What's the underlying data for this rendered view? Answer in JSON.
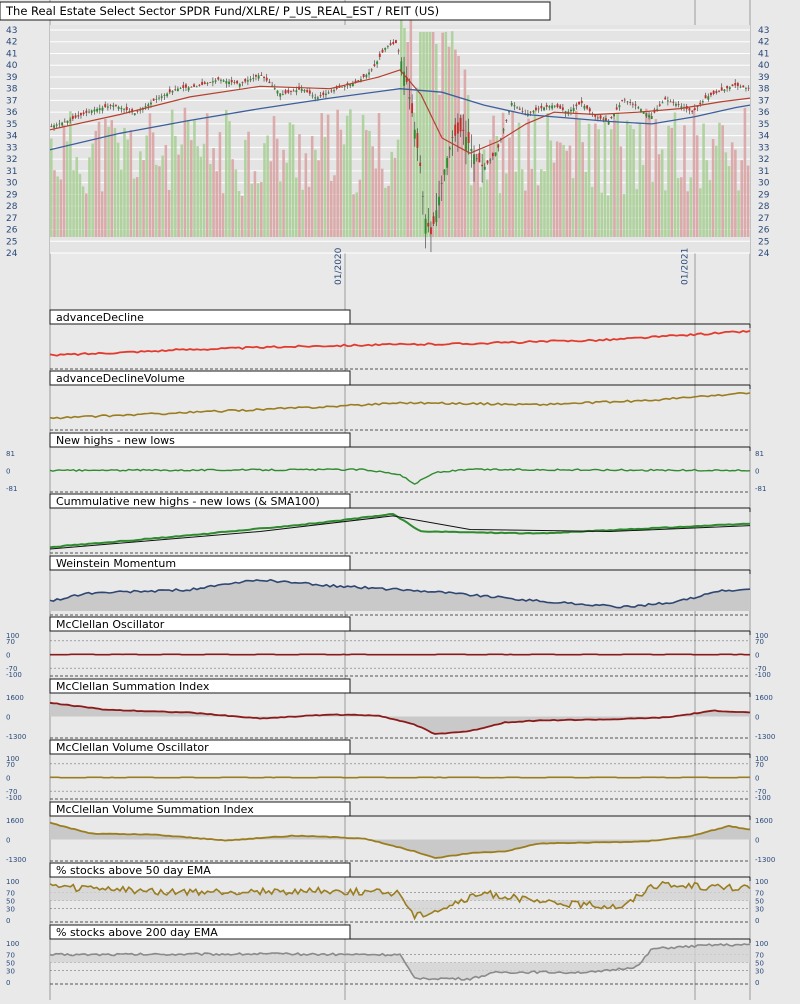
{
  "title": "The Real Estate Select Sector SPDR Fund/XLRE/ P_US_REAL_EST / REIT (US)",
  "colors": {
    "background": "#e9e9e9",
    "grid": "#ffffff",
    "frame": "#1a1a1a",
    "axis_text": "#2a4a7a",
    "up_candle": "#2e8b2e",
    "down_candle": "#c0302a",
    "volume_up": "#a7cf93",
    "volume_down": "#d9a0a0",
    "sma_red": "#b5402e",
    "sma_blue": "#3d5f9c",
    "ad_line": "#e23b2e",
    "olive": "#9a7d1f",
    "green": "#2e8b2e",
    "navy": "#2f4672",
    "maroon": "#8b1a1a",
    "gray_line": "#8a8a8a"
  },
  "chart_data": [
    {
      "type": "candlestick",
      "title": "The Real Estate Select Sector SPDR Fund/XLRE/ P_US_REAL_EST / REIT (US)",
      "y_ticks": [
        "43",
        "42",
        "41",
        "40",
        "39",
        "38",
        "37",
        "36",
        "35",
        "34",
        "33",
        "32",
        "31",
        "30",
        "29",
        "28",
        "27",
        "26",
        "25",
        "24"
      ],
      "ylim": [
        24,
        43
      ],
      "x_ticks": [
        "01/2020",
        "01/2021"
      ],
      "x_tick_positions": [
        0.42,
        0.915
      ],
      "series": [
        {
          "kind": "close",
          "points": [
            [
              0,
              34.8
            ],
            [
              0.03,
              35.4
            ],
            [
              0.06,
              36.2
            ],
            [
              0.09,
              36.6
            ],
            [
              0.12,
              35.9
            ],
            [
              0.15,
              37.1
            ],
            [
              0.18,
              38.0
            ],
            [
              0.21,
              38.2
            ],
            [
              0.24,
              38.8
            ],
            [
              0.27,
              38.4
            ],
            [
              0.3,
              39.2
            ],
            [
              0.33,
              37.5
            ],
            [
              0.36,
              38.0
            ],
            [
              0.38,
              37.2
            ],
            [
              0.41,
              38.0
            ],
            [
              0.44,
              38.6
            ],
            [
              0.46,
              39.6
            ],
            [
              0.48,
              41.6
            ],
            [
              0.495,
              41.9
            ],
            [
              0.51,
              38.5
            ],
            [
              0.52,
              35.0
            ],
            [
              0.53,
              31.0
            ],
            [
              0.535,
              27.2
            ],
            [
              0.545,
              25.5
            ],
            [
              0.555,
              28.5
            ],
            [
              0.565,
              31.5
            ],
            [
              0.575,
              33.8
            ],
            [
              0.59,
              34.5
            ],
            [
              0.605,
              32.5
            ],
            [
              0.62,
              31.2
            ],
            [
              0.64,
              32.8
            ],
            [
              0.66,
              36.8
            ],
            [
              0.68,
              35.8
            ],
            [
              0.7,
              36.3
            ],
            [
              0.72,
              36.6
            ],
            [
              0.74,
              36.0
            ],
            [
              0.76,
              36.8
            ],
            [
              0.78,
              35.6
            ],
            [
              0.8,
              35.2
            ],
            [
              0.82,
              37.1
            ],
            [
              0.84,
              36.5
            ],
            [
              0.86,
              35.6
            ],
            [
              0.88,
              37.1
            ],
            [
              0.9,
              36.6
            ],
            [
              0.92,
              36.0
            ],
            [
              0.94,
              37.3
            ],
            [
              0.96,
              37.8
            ],
            [
              0.98,
              38.3
            ],
            [
              1.0,
              38.0
            ]
          ]
        },
        {
          "kind": "sma_short",
          "points": [
            [
              0,
              34.5
            ],
            [
              0.1,
              35.8
            ],
            [
              0.2,
              37.3
            ],
            [
              0.3,
              38.2
            ],
            [
              0.4,
              38.0
            ],
            [
              0.47,
              39.0
            ],
            [
              0.5,
              39.6
            ],
            [
              0.53,
              37.5
            ],
            [
              0.56,
              33.8
            ],
            [
              0.6,
              32.5
            ],
            [
              0.64,
              33.5
            ],
            [
              0.68,
              35.0
            ],
            [
              0.72,
              36.0
            ],
            [
              0.78,
              35.8
            ],
            [
              0.84,
              36.0
            ],
            [
              0.9,
              36.3
            ],
            [
              0.96,
              36.9
            ],
            [
              1.0,
              37.2
            ]
          ]
        },
        {
          "kind": "sma_long",
          "points": [
            [
              0,
              32.8
            ],
            [
              0.1,
              34.2
            ],
            [
              0.2,
              35.3
            ],
            [
              0.3,
              36.3
            ],
            [
              0.4,
              37.2
            ],
            [
              0.5,
              38.0
            ],
            [
              0.56,
              37.7
            ],
            [
              0.62,
              36.6
            ],
            [
              0.68,
              35.8
            ],
            [
              0.74,
              35.5
            ],
            [
              0.8,
              35.2
            ],
            [
              0.86,
              35.0
            ],
            [
              0.92,
              35.6
            ],
            [
              0.98,
              36.4
            ],
            [
              1.0,
              36.6
            ]
          ]
        }
      ]
    },
    {
      "type": "line",
      "title": "advanceDecline",
      "points": [
        [
          0,
          0.3
        ],
        [
          0.2,
          0.45
        ],
        [
          0.4,
          0.55
        ],
        [
          0.6,
          0.6
        ],
        [
          0.8,
          0.7
        ],
        [
          1.0,
          0.92
        ]
      ]
    },
    {
      "type": "line",
      "title": "advanceDeclineVolume",
      "points": [
        [
          0,
          0.25
        ],
        [
          0.2,
          0.4
        ],
        [
          0.4,
          0.55
        ],
        [
          0.5,
          0.65
        ],
        [
          0.7,
          0.6
        ],
        [
          0.85,
          0.7
        ],
        [
          1.0,
          0.9
        ]
      ]
    },
    {
      "type": "line",
      "title": "New highs - new lows",
      "y_ticks": [
        "81",
        "0",
        "-81"
      ],
      "points": [
        [
          0,
          0.0
        ],
        [
          0.45,
          0.05
        ],
        [
          0.5,
          -0.2
        ],
        [
          0.52,
          -0.7
        ],
        [
          0.55,
          -0.1
        ],
        [
          0.6,
          0.05
        ],
        [
          1.0,
          0.0
        ]
      ]
    },
    {
      "type": "line",
      "title": "Cummulative new highs - new lows (& SMA100)",
      "points": [
        [
          0,
          0.1
        ],
        [
          0.2,
          0.4
        ],
        [
          0.4,
          0.75
        ],
        [
          0.49,
          0.95
        ],
        [
          0.53,
          0.5
        ],
        [
          0.7,
          0.45
        ],
        [
          1.0,
          0.7
        ]
      ]
    },
    {
      "type": "area",
      "title": "Weinstein Momentum",
      "points": [
        [
          0,
          0.3
        ],
        [
          0.05,
          0.5
        ],
        [
          0.2,
          0.6
        ],
        [
          0.3,
          0.85
        ],
        [
          0.4,
          0.7
        ],
        [
          0.55,
          0.55
        ],
        [
          0.7,
          0.3
        ],
        [
          0.82,
          0.15
        ],
        [
          0.9,
          0.3
        ],
        [
          0.95,
          0.55
        ],
        [
          1.0,
          0.6
        ]
      ]
    },
    {
      "type": "oscillator",
      "title": "McClellan Oscillator",
      "y_ticks": [
        "100",
        "70",
        "0",
        "-70",
        "-100"
      ],
      "ylim": [
        -100,
        100
      ]
    },
    {
      "type": "area",
      "title": "McClellan Summation Index",
      "y_ticks": [
        "1600",
        "0",
        "-1300"
      ],
      "ylim": [
        -1300,
        1600
      ],
      "points": [
        [
          0,
          0.7
        ],
        [
          0.08,
          0.35
        ],
        [
          0.2,
          0.2
        ],
        [
          0.3,
          -0.1
        ],
        [
          0.4,
          0.1
        ],
        [
          0.47,
          0.05
        ],
        [
          0.52,
          -0.4
        ],
        [
          0.55,
          -0.9
        ],
        [
          0.6,
          -0.75
        ],
        [
          0.65,
          -0.3
        ],
        [
          0.7,
          -0.2
        ],
        [
          0.8,
          -0.15
        ],
        [
          0.88,
          -0.05
        ],
        [
          0.95,
          0.3
        ],
        [
          1.0,
          0.2
        ]
      ]
    },
    {
      "type": "oscillator",
      "title": "McClellan Volume Oscillator",
      "y_ticks": [
        "100",
        "70",
        "0",
        "-70",
        "-100"
      ],
      "ylim": [
        -100,
        100
      ]
    },
    {
      "type": "area",
      "title": "McClellan Volume Summation Index",
      "y_ticks": [
        "1600",
        "0",
        "-1300"
      ],
      "ylim": [
        -1300,
        1600
      ],
      "points": [
        [
          0,
          0.85
        ],
        [
          0.06,
          0.3
        ],
        [
          0.15,
          0.25
        ],
        [
          0.25,
          -0.05
        ],
        [
          0.35,
          0.2
        ],
        [
          0.45,
          0.05
        ],
        [
          0.52,
          -0.6
        ],
        [
          0.55,
          -0.95
        ],
        [
          0.6,
          -0.7
        ],
        [
          0.65,
          -0.6
        ],
        [
          0.7,
          -0.2
        ],
        [
          0.78,
          -0.15
        ],
        [
          0.85,
          -0.1
        ],
        [
          0.92,
          0.2
        ],
        [
          0.97,
          0.7
        ],
        [
          1.0,
          0.5
        ]
      ]
    },
    {
      "type": "percent",
      "title": "% stocks above 50 day EMA",
      "y_ticks": [
        "100",
        "70",
        "50",
        "30",
        "0"
      ],
      "ylim": [
        0,
        100
      ]
    },
    {
      "type": "percent",
      "title": "% stocks above 200 day EMA",
      "y_ticks": [
        "100",
        "70",
        "50",
        "30",
        "0"
      ],
      "ylim": [
        0,
        100
      ]
    }
  ]
}
